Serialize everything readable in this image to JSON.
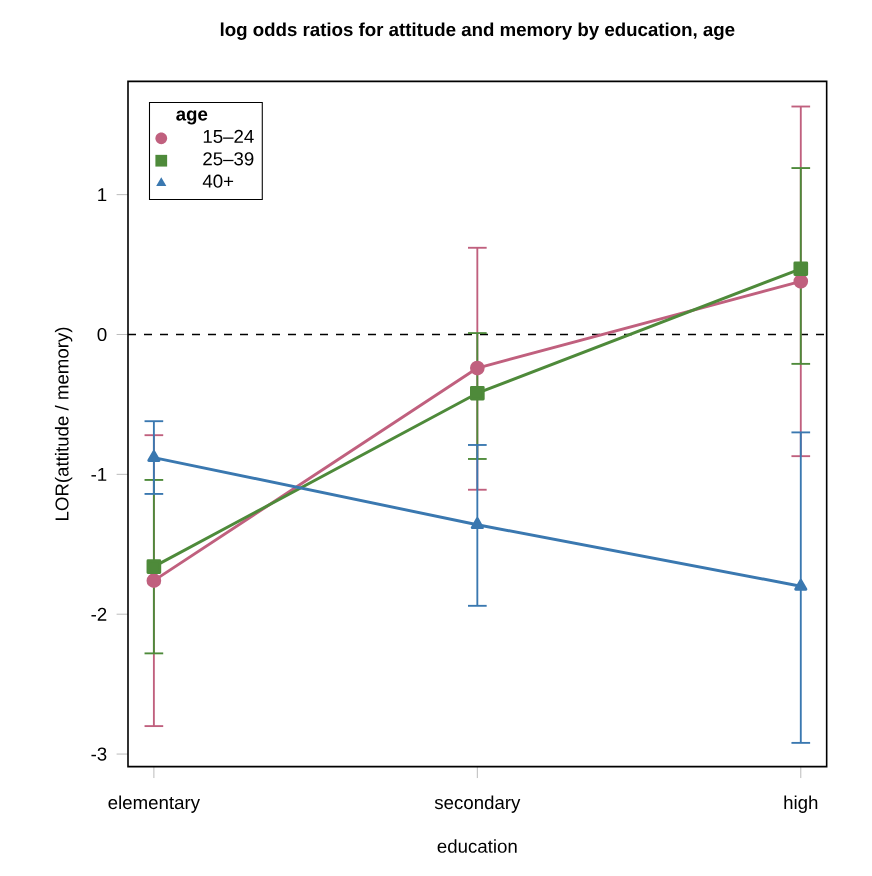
{
  "chart_data": {
    "type": "line",
    "title": "log odds ratios for attitude and memory by education, age",
    "xlabel": "education",
    "ylabel": "LOR(attitude / memory)",
    "legend_title": "age",
    "legend": "top left",
    "categories": [
      "elementary",
      "secondary",
      "high"
    ],
    "ylim": [
      -3.09,
      1.81
    ],
    "yticks": [
      -3,
      -2,
      -1,
      0,
      1
    ],
    "ref_lines": [
      {
        "axis": "y",
        "value": 0,
        "line_style": "dashed",
        "color": "#000000"
      }
    ],
    "series": [
      {
        "name": "15–24",
        "color": "#c0607e",
        "marker": "circle",
        "values": [
          -1.76,
          -0.24,
          0.38
        ],
        "errors": [
          [
            -2.8,
            -0.72
          ],
          [
            -1.11,
            0.62
          ],
          [
            -0.87,
            1.63
          ]
        ]
      },
      {
        "name": "25–39",
        "color": "#4e8a3a",
        "marker": "square",
        "values": [
          -1.66,
          -0.42,
          0.47
        ],
        "errors": [
          [
            -2.28,
            -1.04
          ],
          [
            -0.89,
            0.01
          ],
          [
            -0.21,
            1.19
          ]
        ]
      },
      {
        "name": "40+",
        "color": "#3a78b0",
        "marker": "triangle",
        "values": [
          -0.88,
          -1.36,
          -1.8
        ],
        "errors": [
          [
            -1.14,
            -0.62
          ],
          [
            -1.94,
            -0.79
          ],
          [
            -2.92,
            -0.7
          ]
        ]
      }
    ]
  }
}
